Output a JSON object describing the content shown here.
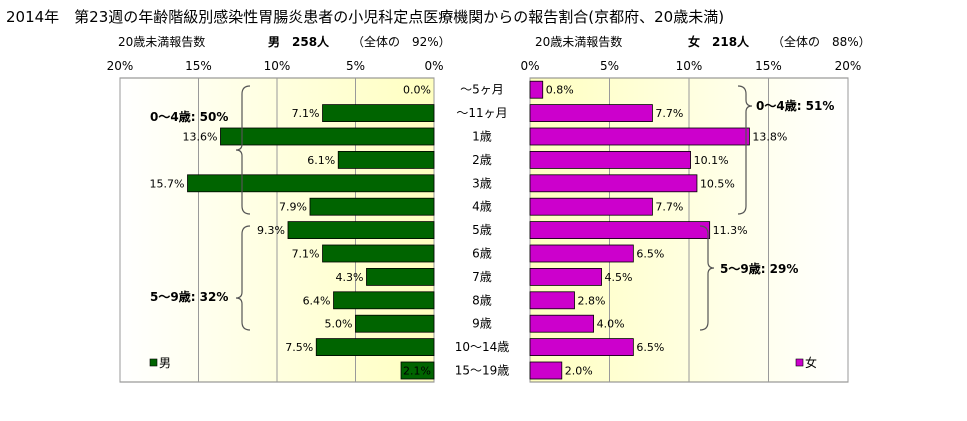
{
  "page_title": "2014年　第23週の年齢階級別感染性胃腸炎患者の小児科定点医療機関からの報告割合(京都府、20歳未満)",
  "male_header": {
    "report_label": "20歳未満報告数",
    "main": "男　258人",
    "share": "（全体の　92%）"
  },
  "female_header": {
    "report_label": "20歳未満報告数",
    "main": "女　218人",
    "share": "（全体の　88%）"
  },
  "chart_data": {
    "type": "bar",
    "orientation": "horizontal-butterfly",
    "categories": [
      "～5ヶ月",
      "～11ヶ月",
      "1歳",
      "2歳",
      "3歳",
      "4歳",
      "5歳",
      "6歳",
      "7歳",
      "8歳",
      "9歳",
      "10～14歳",
      "15～19歳"
    ],
    "series": [
      {
        "name": "男",
        "color": "#006400",
        "values": [
          0.0,
          7.1,
          13.6,
          6.1,
          15.7,
          7.9,
          9.3,
          7.1,
          4.3,
          6.4,
          5.0,
          7.5,
          2.1
        ],
        "labels": [
          "0.0%",
          "7.1%",
          "13.6%",
          "6.1%",
          "15.7%",
          "7.9%",
          "9.3%",
          "7.1%",
          "4.3%",
          "6.4%",
          "5.0%",
          "7.5%",
          "2.1%"
        ]
      },
      {
        "name": "女",
        "color": "#cc00cc",
        "values": [
          0.8,
          7.7,
          13.8,
          10.1,
          10.5,
          7.7,
          11.3,
          6.5,
          4.5,
          2.8,
          4.0,
          6.5,
          2.0
        ],
        "labels": [
          "0.8%",
          "7.7%",
          "13.8%",
          "10.1%",
          "10.5%",
          "7.7%",
          "11.3%",
          "6.5%",
          "4.5%",
          "2.8%",
          "4.0%",
          "6.5%",
          "2.0%"
        ]
      }
    ],
    "xlim": [
      0,
      20
    ],
    "male_ticks": [
      "20%",
      "15%",
      "10%",
      "5%",
      "0%"
    ],
    "female_ticks": [
      "0%",
      "5%",
      "10%",
      "15%",
      "20%"
    ],
    "grid": true,
    "legend": {
      "male": "男",
      "female": "女"
    },
    "annotations": {
      "male_0_4": "0～4歳: 50%",
      "male_5_9": "5～9歳: 32%",
      "female_0_4": "0～4歳: 51%",
      "female_5_9": "5～9歳: 29%"
    }
  }
}
